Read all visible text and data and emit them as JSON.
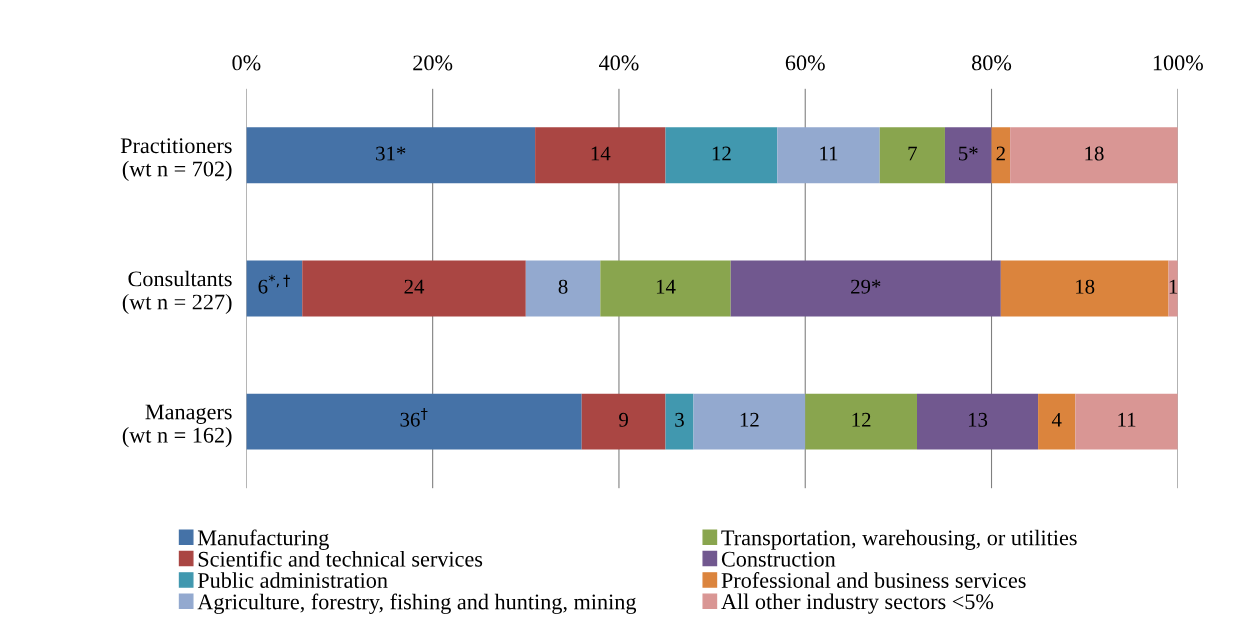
{
  "chart_data": {
    "type": "bar",
    "orientation": "horizontal",
    "stacked": true,
    "categories": [
      "Practitioners\n(wt n = 702)",
      "Consultants\n(wt n = 227)",
      "Managers\n(wt n = 162)"
    ],
    "series": [
      {
        "name": "Manufacturing",
        "color": "#4572a7",
        "values": [
          31,
          6,
          36
        ],
        "value_labels": [
          "31*",
          "6$^{*,†}$",
          "36$^{†}$"
        ]
      },
      {
        "name": "Scientific and technical services",
        "color": "#aa4643",
        "values": [
          14,
          24,
          9
        ],
        "value_labels": [
          "14",
          "24",
          "9"
        ]
      },
      {
        "name": "Public administration",
        "color": "#4198af",
        "values": [
          12,
          null,
          3
        ],
        "value_labels": [
          "12",
          null,
          "3"
        ]
      },
      {
        "name": "Agriculture, forestry, fishing and hunting, mining",
        "color": "#93a9cf",
        "values": [
          11,
          8,
          12
        ],
        "value_labels": [
          "11",
          "8",
          "12"
        ]
      },
      {
        "name": "Transportation, warehousing, or utilities",
        "color": "#89a54e",
        "values": [
          7,
          14,
          12
        ],
        "value_labels": [
          "7",
          "14",
          "12"
        ]
      },
      {
        "name": "Construction",
        "color": "#71588f",
        "values": [
          5,
          29,
          13
        ],
        "value_labels": [
          "5*",
          "29*",
          "13"
        ]
      },
      {
        "name": "Professional and business services",
        "color": "#db843d",
        "values": [
          2,
          18,
          4
        ],
        "value_labels": [
          "2",
          "18",
          "4"
        ]
      },
      {
        "name": "All other industry sectors <5%",
        "color": "#d99694",
        "values": [
          18,
          1,
          11
        ],
        "value_labels": [
          "18",
          "1",
          "11"
        ]
      }
    ],
    "xlim": [
      0,
      100
    ],
    "xticks": [
      {
        "value": 0,
        "label": "0%"
      },
      {
        "value": 20,
        "label": "20%"
      },
      {
        "value": 40,
        "label": "40%"
      },
      {
        "value": 60,
        "label": "60%"
      },
      {
        "value": 80,
        "label": "80%"
      },
      {
        "value": 100,
        "label": "100%"
      }
    ],
    "grid": "x",
    "legend": "bottom"
  }
}
